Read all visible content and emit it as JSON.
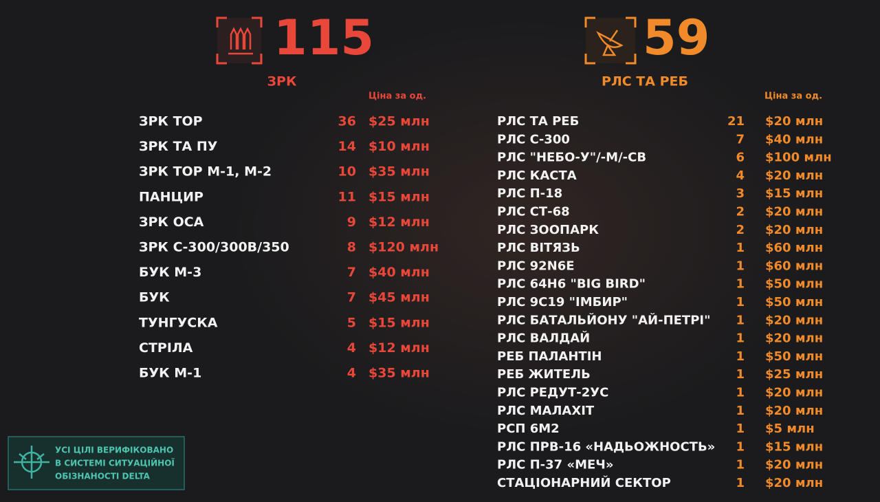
{
  "left": {
    "total": 115,
    "title": "ЗРК",
    "price_header": "Ціна за од.",
    "rows": [
      [
        "ЗРК ТОР",
        36,
        "$25 млн"
      ],
      [
        "ЗРК ТА ПУ",
        14,
        "$10 млн"
      ],
      [
        "ЗРК ТОР М-1, М-2",
        10,
        "$35 млн"
      ],
      [
        "ПАНЦИР",
        11,
        "$15 млн"
      ],
      [
        "ЗРК ОСА",
        9,
        "$12 млн"
      ],
      [
        "ЗРК С-300/300В/350",
        8,
        "$120 млн"
      ],
      [
        "БУК М-3",
        7,
        "$40 млн"
      ],
      [
        "БУК",
        7,
        "$45 млн"
      ],
      [
        "ТУНГУСКА",
        5,
        "$15 млн"
      ],
      [
        "СТРІЛА",
        4,
        "$12 млн"
      ],
      [
        "БУК М-1",
        4,
        "$35 млн"
      ]
    ]
  },
  "right": {
    "total": 59,
    "title": "РЛС ТА РЕБ",
    "price_header": "Ціна за од.",
    "rows": [
      [
        "РЛС ТА РЕБ",
        21,
        "$20 млн"
      ],
      [
        "РЛС С-300",
        7,
        "$40 млн"
      ],
      [
        "РЛС \"НЕБО-У\"/-М/-СВ",
        6,
        "$100 млн"
      ],
      [
        "РЛС КАСТА",
        4,
        "$20 млн"
      ],
      [
        "РЛС П-18",
        3,
        "$15 млн"
      ],
      [
        "РЛС СТ-68",
        2,
        "$20 млн"
      ],
      [
        "РЛС ЗООПАРК",
        2,
        "$20 млн"
      ],
      [
        "РЛС ВІТЯЗЬ",
        1,
        "$60 млн"
      ],
      [
        "РЛС 92N6E",
        1,
        "$60 млн"
      ],
      [
        "РЛС 64Н6 \"BIG BIRD\"",
        1,
        "$50 млн"
      ],
      [
        "РЛС 9С19 \"ІМБИР\"",
        1,
        "$50 млн"
      ],
      [
        "РЛС БАТАЛЬЙОНУ \"АЙ-ПЕТРІ\"",
        1,
        "$20 млн"
      ],
      [
        "РЛС ВАЛДАЙ",
        1,
        "$20 млн"
      ],
      [
        "РЕБ ПАЛАНТІН",
        1,
        "$50 млн"
      ],
      [
        "РЕБ ЖИТЕЛЬ",
        1,
        "$25 млн"
      ],
      [
        "РЛС РЕДУТ-2УС",
        1,
        "$20 млн"
      ],
      [
        "РЛС МАЛАХІТ",
        1,
        "$20 млн"
      ],
      [
        "РСП 6М2",
        1,
        "$5 млн"
      ],
      [
        "РЛС ПРВ-16 «НАДЬОЖНОСТЬ»",
        1,
        "$15 млн"
      ],
      [
        "РЛС П-37 «МЕЧ»",
        1,
        "$20 млн"
      ],
      [
        "СТАЦІОНАРНИЙ СЕКТОР",
        1,
        "$20 млн"
      ]
    ]
  },
  "badge": [
    "УСІ ЦІЛІ ВЕРИФІКОВАНО",
    "В СИСТЕМІ СИТУАЦІЙНОЇ",
    "ОБІЗНАНОСТІ DELTA"
  ]
}
